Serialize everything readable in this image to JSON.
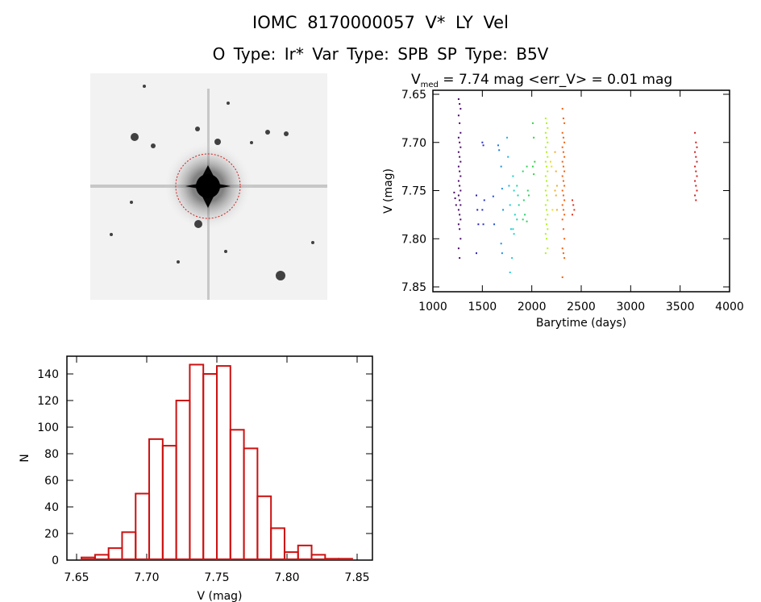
{
  "header": {
    "title": "IOMC 8170000057    V* LY Vel",
    "subtitle": "O Type: Ir*  Var Type: SPB  SP Type: B5V"
  },
  "chart_data": [
    {
      "type": "image",
      "name": "finding-chart",
      "description_marks": "DSS star field with red aperture circle around target"
    },
    {
      "type": "scatter",
      "title_prefix": "V",
      "title_sub": "med",
      "title_rest": " = 7.74 mag <err_V> = 0.01 mag",
      "xlabel": "Barytime (days)",
      "ylabel": "V (mag)",
      "xlim": [
        1000,
        4000
      ],
      "ylim": [
        7.85,
        7.65
      ],
      "xticks": [
        "1000",
        "1500",
        "2000",
        "2500",
        "3000",
        "3500",
        "4000"
      ],
      "yticks": [
        "7.65",
        "7.70",
        "7.75",
        "7.80",
        "7.85"
      ],
      "series": [
        {
          "color": "#4a0a6a",
          "x": 1270,
          "y": [
            7.655,
            7.66,
            7.665,
            7.672,
            7.68,
            7.69,
            7.695,
            7.7,
            7.705,
            7.71,
            7.715,
            7.72,
            7.725,
            7.73,
            7.735,
            7.74,
            7.745,
            7.75,
            7.755,
            7.76,
            7.765,
            7.77,
            7.775,
            7.78,
            7.785,
            7.79,
            7.8,
            7.81,
            7.82
          ]
        },
        {
          "color": "#4a0a6a",
          "x": 1225,
          "y": [
            7.752,
            7.758,
            7.765
          ]
        },
        {
          "color": "#2a20b0",
          "x": 1450,
          "y": [
            7.755,
            7.77,
            7.785,
            7.815
          ]
        },
        {
          "color": "#2a30c0",
          "x": 1510,
          "y": [
            7.7,
            7.703,
            7.76,
            7.77,
            7.785
          ]
        },
        {
          "color": "#2050d0",
          "x": 1620,
          "y": [
            7.756,
            7.785
          ]
        },
        {
          "color": "#1a78e0",
          "x": 1670,
          "y": [
            7.703,
            7.708
          ]
        },
        {
          "color": "#1a90e0",
          "x": 1700,
          "y": [
            7.725,
            7.748,
            7.77,
            7.805,
            7.815
          ]
        },
        {
          "color": "#20b0e0",
          "x": 1760,
          "y": [
            7.695,
            7.715,
            7.745
          ]
        },
        {
          "color": "#20c8d8",
          "x": 1790,
          "y": [
            7.765,
            7.79,
            7.82,
            7.835
          ]
        },
        {
          "color": "#20d0c0",
          "x": 1820,
          "y": [
            7.735,
            7.75,
            7.775,
            7.79,
            7.795
          ]
        },
        {
          "color": "#20d0a0",
          "x": 1860,
          "y": [
            7.745,
            7.755,
            7.765,
            7.78
          ]
        },
        {
          "color": "#30d070",
          "x": 1920,
          "y": [
            7.73,
            7.76,
            7.775,
            7.78
          ]
        },
        {
          "color": "#30d060",
          "x": 1960,
          "y": [
            7.725,
            7.75,
            7.755,
            7.782
          ]
        },
        {
          "color": "#30d040",
          "x": 2020,
          "y": [
            7.68,
            7.695,
            7.72,
            7.725,
            7.733
          ]
        },
        {
          "color": "#b0f020",
          "x": 2150,
          "y": [
            7.675,
            7.68,
            7.685,
            7.69,
            7.695,
            7.7,
            7.705,
            7.71,
            7.715,
            7.72,
            7.725,
            7.73,
            7.735,
            7.74,
            7.745,
            7.75,
            7.755,
            7.76,
            7.765,
            7.77,
            7.775,
            7.78,
            7.785,
            7.79,
            7.795,
            7.8,
            7.81,
            7.815
          ]
        },
        {
          "color": "#e8e020",
          "x": 2200,
          "y": [
            7.72,
            7.725,
            7.77
          ]
        },
        {
          "color": "#e8b030",
          "x": 2245,
          "y": [
            7.71,
            7.73,
            7.745,
            7.75,
            7.755,
            7.77
          ]
        },
        {
          "color": "#f06010",
          "x": 2320,
          "y": [
            7.665,
            7.675,
            7.68,
            7.69,
            7.695,
            7.7,
            7.705,
            7.71,
            7.715,
            7.72,
            7.725,
            7.73,
            7.735,
            7.74,
            7.745,
            7.75,
            7.755,
            7.76,
            7.765,
            7.77,
            7.775,
            7.78,
            7.79,
            7.8,
            7.81,
            7.815,
            7.82,
            7.84
          ]
        },
        {
          "color": "#e03020",
          "x": 2420,
          "y": [
            7.76,
            7.765,
            7.77,
            7.775
          ]
        },
        {
          "color": "#d02020",
          "x": 3660,
          "y": [
            7.69,
            7.7,
            7.705,
            7.71,
            7.715,
            7.72,
            7.725,
            7.73,
            7.735,
            7.74,
            7.745,
            7.75,
            7.755,
            7.76
          ]
        }
      ]
    },
    {
      "type": "bar",
      "name": "histogram",
      "xlabel": "V (mag)",
      "ylabel": "N",
      "xlim": [
        7.64,
        7.857
      ],
      "ylim": [
        0,
        155
      ],
      "xticks": [
        "7.65",
        "7.70",
        "7.75",
        "7.80",
        "7.85"
      ],
      "yticks": [
        "0",
        "20",
        "40",
        "60",
        "80",
        "100",
        "120",
        "140"
      ],
      "bin_start": 7.6535,
      "bin_width": 0.00965,
      "values": [
        2,
        4,
        9,
        21,
        50,
        91,
        86,
        120,
        147,
        140,
        146,
        98,
        84,
        48,
        24,
        6,
        11,
        4,
        1,
        1
      ],
      "color": "#cc1111"
    }
  ]
}
